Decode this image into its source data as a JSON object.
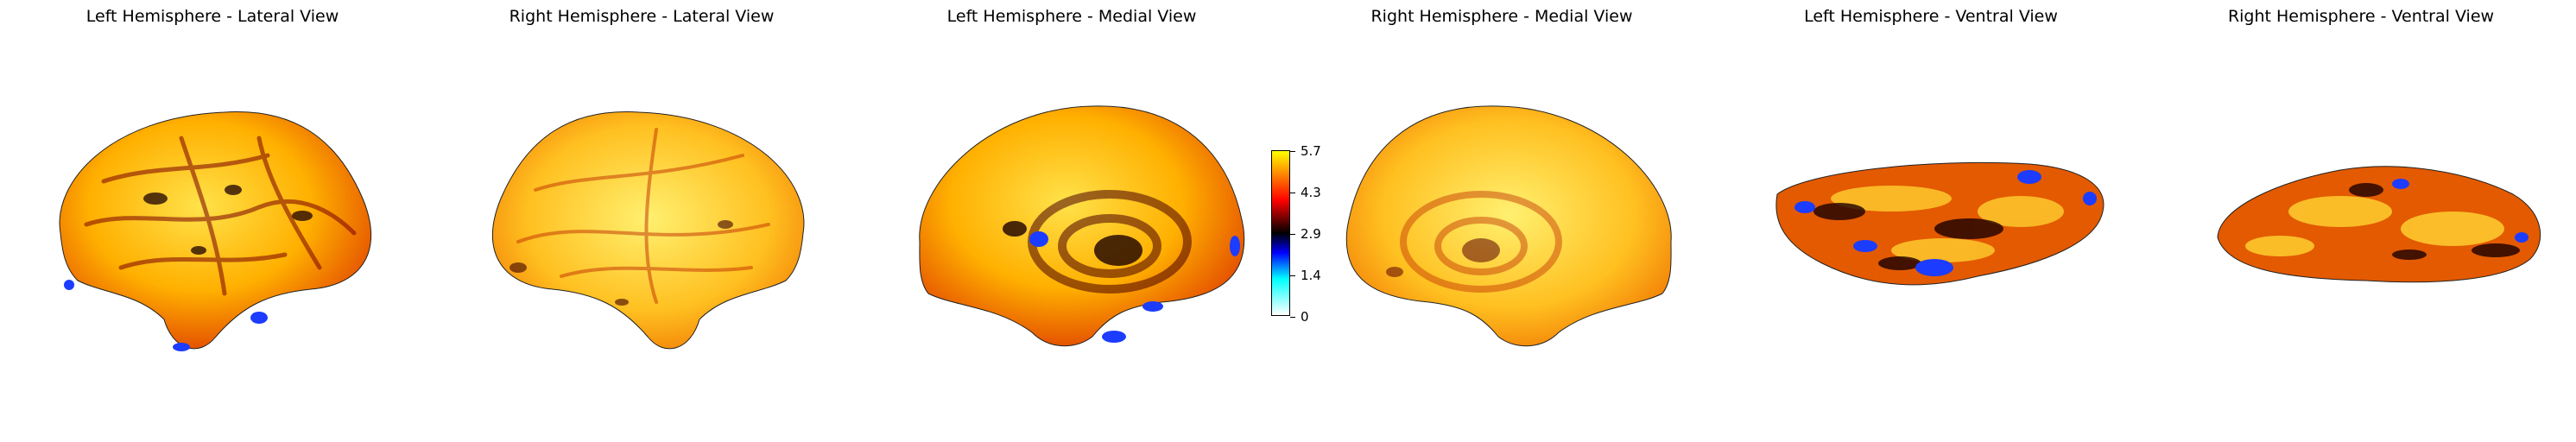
{
  "panels": [
    {
      "title": "Left Hemisphere - Lateral View"
    },
    {
      "title": "Right Hemisphere - Lateral View"
    },
    {
      "title": "Left Hemisphere - Medial View"
    },
    {
      "title": "Right Hemisphere - Medial View"
    },
    {
      "title": "Left Hemisphere - Ventral View"
    },
    {
      "title": "Right Hemisphere - Ventral View"
    }
  ],
  "colorbar": {
    "ticks": [
      "5.7",
      "4.3",
      "2.9",
      "1.4",
      "0"
    ],
    "colormap_colors": [
      "#ffffff",
      "#00ffff",
      "#0000ff",
      "#000000",
      "#ff0000",
      "#ffff00"
    ]
  },
  "colors": {
    "hot_base": "#f0a000",
    "hot_bright": "#ffe24a",
    "hot_red": "#e03000",
    "dark": "#3a0000",
    "blue": "#1c3cff"
  }
}
